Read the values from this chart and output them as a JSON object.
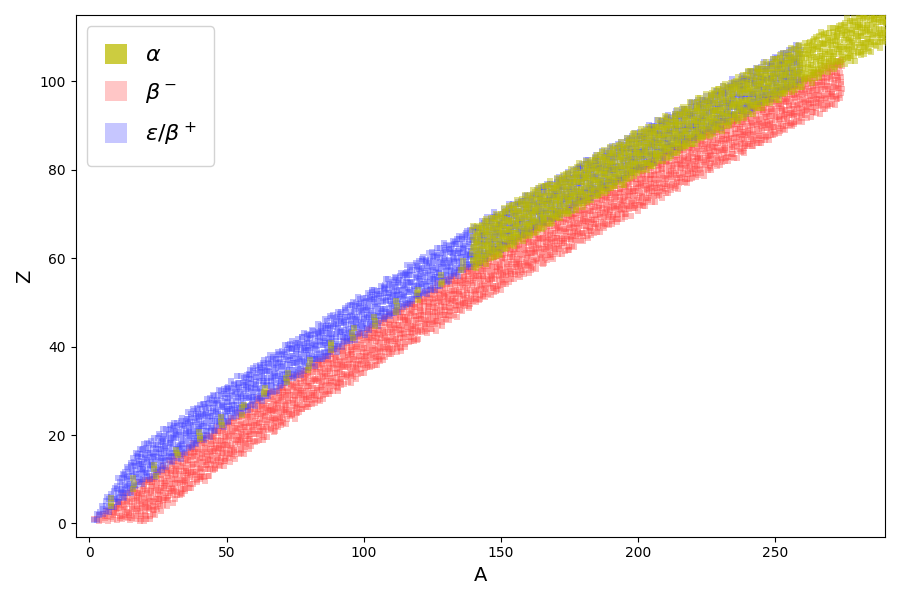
{
  "title": "",
  "xlabel": "A",
  "ylabel": "Z",
  "xlim": [
    -5,
    290
  ],
  "ylim": [
    -3,
    115
  ],
  "alpha_color": "#bbbb00",
  "beta_minus_color": "#ff4444",
  "epsilon_beta_plus_color": "#4444ff",
  "alpha_label": "α",
  "beta_minus_label": "β⁻",
  "epsilon_beta_plus_label": "ε/β⁺",
  "marker_size": 16,
  "marker_alpha": 0.35,
  "legend_fontsize": 16,
  "figsize": [
    9.0,
    6.0
  ],
  "dpi": 100
}
